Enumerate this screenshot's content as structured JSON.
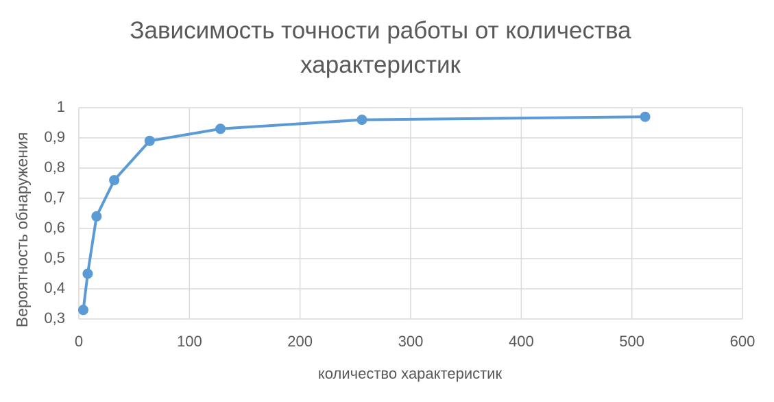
{
  "chart_data": {
    "type": "line",
    "title": "Зависимость точности работы от количества характеристик",
    "x_label": "количество характеристик",
    "y_label": "Вероятность обнаружения",
    "x": [
      4,
      8,
      16,
      32,
      64,
      128,
      256,
      512
    ],
    "series": [
      {
        "name": "Вероятность обнаружения",
        "color": "#5b9bd5",
        "values": [
          0.33,
          0.45,
          0.64,
          0.76,
          0.89,
          0.93,
          0.96,
          0.97
        ]
      }
    ],
    "xlim": [
      0,
      600
    ],
    "xticks": [
      0,
      100,
      200,
      300,
      400,
      500,
      600
    ],
    "ylim": [
      0.3,
      1
    ],
    "yticks": [
      {
        "value": 0.3,
        "label": "0,3"
      },
      {
        "value": 0.4,
        "label": "0,4"
      },
      {
        "value": 0.5,
        "label": "0,5"
      },
      {
        "value": 0.6,
        "label": "0,6"
      },
      {
        "value": 0.7,
        "label": "0,7"
      },
      {
        "value": 0.8,
        "label": "0,8"
      },
      {
        "value": 0.9,
        "label": "0,9"
      },
      1
    ],
    "grid": true
  }
}
